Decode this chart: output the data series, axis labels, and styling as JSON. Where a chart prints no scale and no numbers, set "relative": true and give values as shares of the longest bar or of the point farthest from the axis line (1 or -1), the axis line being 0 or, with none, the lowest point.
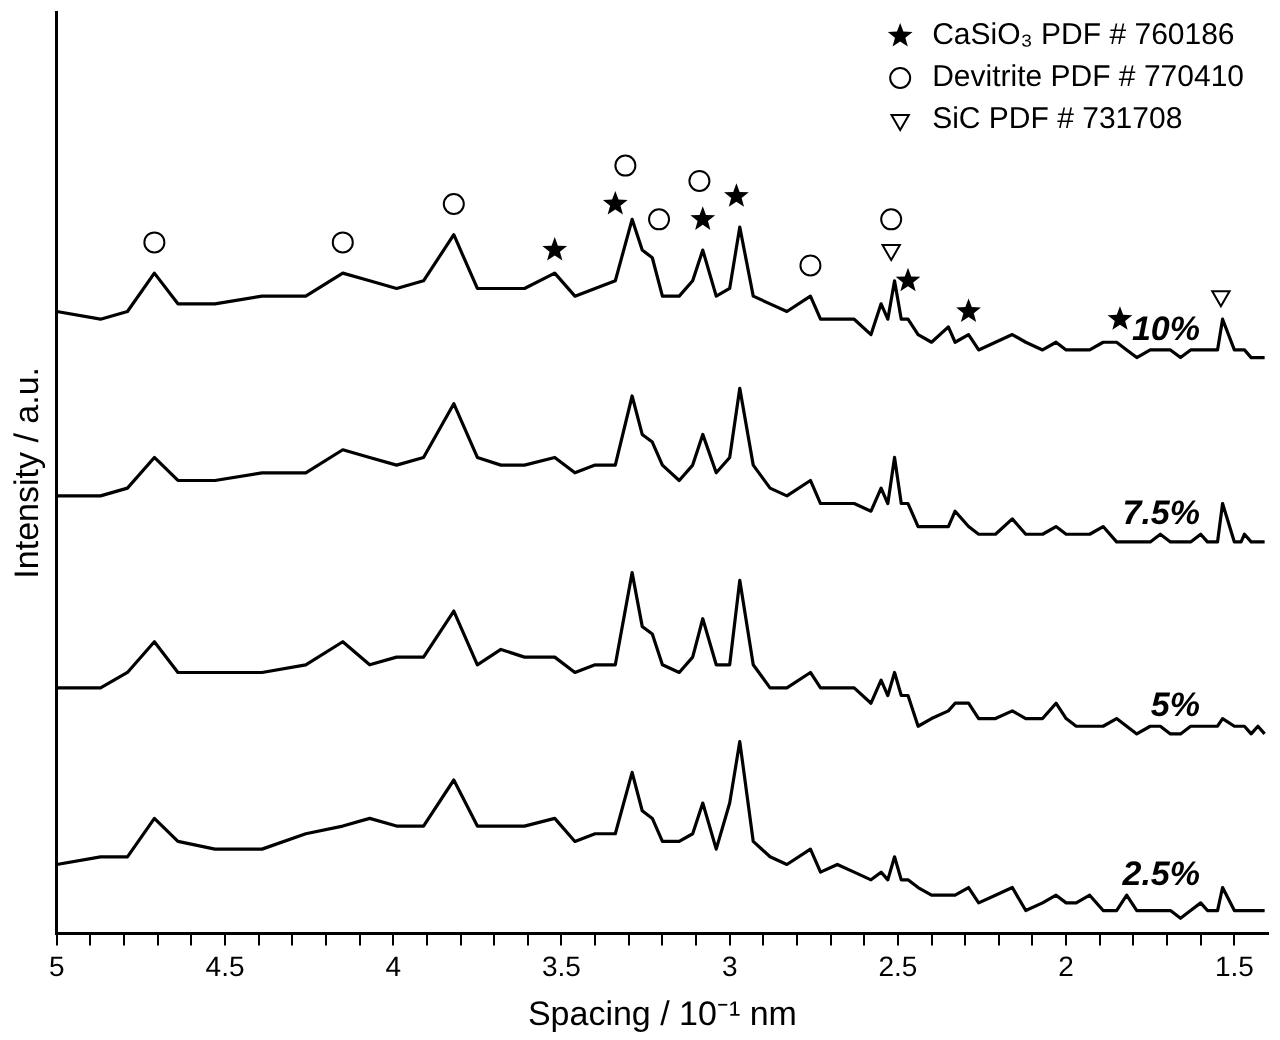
{
  "chart_data": {
    "type": "line",
    "relative": true,
    "xlabel": "Spacing / 10⁻¹ nm",
    "ylabel": "Intensity / a.u.",
    "xlim": [
      5,
      1.4
    ],
    "xticks": [
      5,
      {
        "value": 4.9,
        "label": null
      },
      {
        "value": 4.8,
        "label": null
      },
      {
        "value": 4.7,
        "label": null
      },
      {
        "value": 4.6,
        "label": null
      },
      4.5,
      {
        "value": 4.4,
        "label": null
      },
      {
        "value": 4.3,
        "label": null
      },
      {
        "value": 4.2,
        "label": null
      },
      {
        "value": 4.1,
        "label": null
      },
      4,
      {
        "value": 3.9,
        "label": null
      },
      {
        "value": 3.8,
        "label": null
      },
      {
        "value": 3.7,
        "label": null
      },
      {
        "value": 3.6,
        "label": null
      },
      3.5,
      {
        "value": 3.4,
        "label": null
      },
      {
        "value": 3.3,
        "label": null
      },
      {
        "value": 3.2,
        "label": null
      },
      {
        "value": 3.1,
        "label": null
      },
      3,
      {
        "value": 2.9,
        "label": null
      },
      {
        "value": 2.8,
        "label": null
      },
      {
        "value": 2.7,
        "label": null
      },
      {
        "value": 2.6,
        "label": null
      },
      2.5,
      {
        "value": 2.4,
        "label": null
      },
      {
        "value": 2.3,
        "label": null
      },
      {
        "value": 2.2,
        "label": null
      },
      {
        "value": 2.1,
        "label": null
      },
      2,
      {
        "value": 1.9,
        "label": null
      },
      {
        "value": 1.8,
        "label": null
      },
      {
        "value": 1.7,
        "label": null
      },
      {
        "value": 1.6,
        "label": null
      },
      1.5
    ],
    "x": [
      5.0,
      4.87,
      4.79,
      4.71,
      4.64,
      4.53,
      4.39,
      4.26,
      4.15,
      4.07,
      3.99,
      3.91,
      3.82,
      3.75,
      3.68,
      3.61,
      3.52,
      3.46,
      3.4,
      3.34,
      3.29,
      3.26,
      3.23,
      3.2,
      3.15,
      3.11,
      3.08,
      3.04,
      3.0,
      2.97,
      2.93,
      2.88,
      2.83,
      2.76,
      2.73,
      2.68,
      2.63,
      2.58,
      2.55,
      2.53,
      2.51,
      2.49,
      2.47,
      2.44,
      2.4,
      2.35,
      2.33,
      2.29,
      2.26,
      2.21,
      2.16,
      2.12,
      2.07,
      2.03,
      2.0,
      1.97,
      1.93,
      1.89,
      1.85,
      1.82,
      1.79,
      1.75,
      1.72,
      1.69,
      1.66,
      1.63,
      1.6,
      1.58,
      1.55,
      1.535,
      1.5,
      1.48,
      1.47,
      1.45,
      1.43,
      1.41
    ],
    "legend": "top right",
    "grid": false,
    "series": [
      {
        "name": "10%",
        "type": "line",
        "color": "#000000",
        "marker": "none",
        "values": [
          0.81,
          0.8,
          0.81,
          0.86,
          0.82,
          0.82,
          0.83,
          0.83,
          0.86,
          0.85,
          0.84,
          0.85,
          0.91,
          0.84,
          0.84,
          0.84,
          0.86,
          0.83,
          0.84,
          0.85,
          0.93,
          0.89,
          0.88,
          0.83,
          0.83,
          0.85,
          0.89,
          0.83,
          0.84,
          0.92,
          0.83,
          0.82,
          0.81,
          0.83,
          0.8,
          0.8,
          0.8,
          0.78,
          0.82,
          0.8,
          0.85,
          0.8,
          0.8,
          0.78,
          0.77,
          0.79,
          0.77,
          0.78,
          0.76,
          0.77,
          0.78,
          0.77,
          0.76,
          0.77,
          0.76,
          0.76,
          0.76,
          0.77,
          0.77,
          0.76,
          0.75,
          0.76,
          0.76,
          0.76,
          0.75,
          0.76,
          0.76,
          0.76,
          0.76,
          0.8,
          0.76,
          0.76,
          0.76,
          0.75,
          0.75,
          0.75
        ]
      },
      {
        "name": "7.5%",
        "type": "line",
        "color": "#000000",
        "marker": "none",
        "values": [
          0.57,
          0.57,
          0.58,
          0.62,
          0.59,
          0.59,
          0.6,
          0.6,
          0.63,
          0.62,
          0.61,
          0.62,
          0.69,
          0.62,
          0.61,
          0.61,
          0.62,
          0.6,
          0.61,
          0.61,
          0.7,
          0.65,
          0.64,
          0.61,
          0.59,
          0.61,
          0.65,
          0.6,
          0.62,
          0.71,
          0.61,
          0.58,
          0.57,
          0.59,
          0.56,
          0.56,
          0.56,
          0.55,
          0.58,
          0.56,
          0.62,
          0.56,
          0.56,
          0.53,
          0.53,
          0.53,
          0.55,
          0.53,
          0.52,
          0.52,
          0.54,
          0.52,
          0.52,
          0.53,
          0.52,
          0.52,
          0.52,
          0.53,
          0.51,
          0.51,
          0.51,
          0.51,
          0.52,
          0.51,
          0.51,
          0.51,
          0.52,
          0.51,
          0.51,
          0.56,
          0.51,
          0.51,
          0.52,
          0.51,
          0.51,
          0.51
        ]
      },
      {
        "name": "5%",
        "type": "line",
        "color": "#000000",
        "marker": "none",
        "values": [
          0.32,
          0.32,
          0.34,
          0.38,
          0.34,
          0.34,
          0.34,
          0.35,
          0.38,
          0.35,
          0.36,
          0.36,
          0.42,
          0.35,
          0.37,
          0.36,
          0.36,
          0.34,
          0.35,
          0.35,
          0.47,
          0.4,
          0.39,
          0.35,
          0.34,
          0.36,
          0.41,
          0.35,
          0.35,
          0.46,
          0.35,
          0.32,
          0.32,
          0.34,
          0.32,
          0.32,
          0.32,
          0.3,
          0.33,
          0.31,
          0.34,
          0.31,
          0.31,
          0.27,
          0.28,
          0.29,
          0.3,
          0.3,
          0.28,
          0.28,
          0.29,
          0.28,
          0.28,
          0.3,
          0.28,
          0.27,
          0.27,
          0.27,
          0.28,
          0.27,
          0.26,
          0.27,
          0.27,
          0.26,
          0.26,
          0.27,
          0.27,
          0.27,
          0.27,
          0.28,
          0.27,
          0.27,
          0.27,
          0.26,
          0.27,
          0.26
        ]
      },
      {
        "name": "2.5%",
        "type": "line",
        "color": "#000000",
        "marker": "none",
        "values": [
          0.09,
          0.1,
          0.1,
          0.15,
          0.12,
          0.11,
          0.11,
          0.13,
          0.14,
          0.15,
          0.14,
          0.14,
          0.2,
          0.14,
          0.14,
          0.14,
          0.15,
          0.12,
          0.13,
          0.13,
          0.21,
          0.16,
          0.15,
          0.12,
          0.12,
          0.13,
          0.17,
          0.11,
          0.17,
          0.25,
          0.12,
          0.1,
          0.09,
          0.11,
          0.08,
          0.09,
          0.08,
          0.07,
          0.08,
          0.07,
          0.1,
          0.07,
          0.07,
          0.06,
          0.05,
          0.05,
          0.05,
          0.06,
          0.04,
          0.05,
          0.06,
          0.03,
          0.04,
          0.05,
          0.04,
          0.04,
          0.05,
          0.03,
          0.03,
          0.05,
          0.03,
          0.03,
          0.03,
          0.03,
          0.02,
          0.03,
          0.04,
          0.03,
          0.03,
          0.06,
          0.03,
          0.03,
          0.03,
          0.03,
          0.03,
          0.03
        ]
      },
      {
        "name": "CaSiO₃ PDF # 760186",
        "type": "scatter",
        "color": "#000000",
        "marker": "star",
        "x": [
          3.52,
          3.34,
          3.08,
          2.98,
          2.47,
          2.29,
          1.84
        ],
        "values": [
          0.89,
          0.95,
          0.93,
          0.96,
          0.85,
          0.81,
          0.8
        ]
      },
      {
        "name": "Devitrite PDF # 770410",
        "type": "scatter",
        "color": "#000000",
        "marker": "circle",
        "x": [
          4.71,
          4.15,
          3.82,
          3.31,
          3.21,
          3.09,
          2.76,
          2.52
        ],
        "values": [
          0.9,
          0.9,
          0.95,
          1.0,
          0.93,
          0.98,
          0.87,
          0.93
        ]
      },
      {
        "name": "SiC PDF # 731708",
        "type": "scatter",
        "color": "#000000",
        "marker": "triangle",
        "x": [
          2.52,
          1.54
        ],
        "values": [
          0.89,
          0.83
        ]
      }
    ]
  }
}
